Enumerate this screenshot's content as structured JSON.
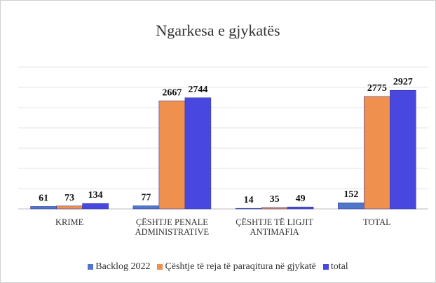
{
  "chart_data": {
    "type": "bar",
    "title": "Ngarkesa e gjykatës",
    "categories": [
      "KRIME",
      "ÇËSHTJE PENALE ADMINISTRATIVE",
      "ÇËSHTJE TË LIGJIT ANTIMAFIA",
      "TOTAL"
    ],
    "series": [
      {
        "name": "Backlog 2022",
        "color": "#4f76c9",
        "values": [
          61,
          77,
          14,
          152
        ]
      },
      {
        "name": "Çështje të reja të paraqitura në gjykatë",
        "color": "#f0904f",
        "values": [
          73,
          2667,
          35,
          2775
        ]
      },
      {
        "name": "total",
        "color": "#4848e0",
        "values": [
          134,
          2744,
          49,
          2927
        ]
      }
    ],
    "ylim": [
      0,
      3500
    ],
    "yticks": [
      0,
      500,
      1000,
      1500,
      2000,
      2500,
      3000,
      3500
    ],
    "grid": true
  }
}
